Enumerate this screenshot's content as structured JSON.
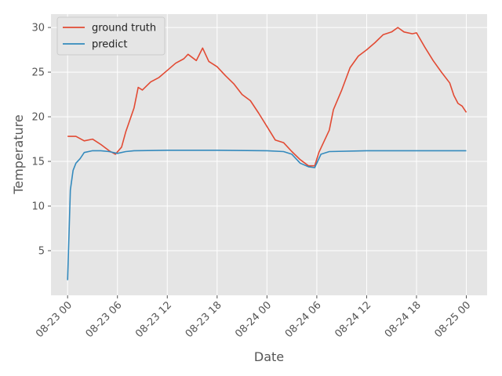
{
  "chart_data": {
    "type": "line",
    "title": "",
    "xlabel": "Date",
    "ylabel": "Temperature",
    "xlim": [
      "2023-08-22 22:00",
      "2023-08-25 02:30"
    ],
    "ylim": [
      0.0,
      31.5
    ],
    "x_ticks": [
      {
        "x": "2023-08-23 00:00",
        "label": "08-23 00"
      },
      {
        "x": "2023-08-23 06:00",
        "label": "08-23 06"
      },
      {
        "x": "2023-08-23 12:00",
        "label": "08-23 12"
      },
      {
        "x": "2023-08-23 18:00",
        "label": "08-23 18"
      },
      {
        "x": "2023-08-24 00:00",
        "label": "08-24 00"
      },
      {
        "x": "2023-08-24 06:00",
        "label": "08-24 06"
      },
      {
        "x": "2023-08-24 12:00",
        "label": "08-24 12"
      },
      {
        "x": "2023-08-24 18:00",
        "label": "08-24 18"
      },
      {
        "x": "2023-08-25 00:00",
        "label": "08-25 00"
      }
    ],
    "y_ticks": [
      5,
      10,
      15,
      20,
      25,
      30
    ],
    "grid": true,
    "legend_position": "top-left",
    "background": "#e5e5e5",
    "series": [
      {
        "name": "ground truth",
        "color": "#e24a33",
        "points": [
          [
            "2023-08-23 00:00",
            17.8
          ],
          [
            "2023-08-23 01:00",
            17.8
          ],
          [
            "2023-08-23 02:00",
            17.3
          ],
          [
            "2023-08-23 03:00",
            17.5
          ],
          [
            "2023-08-23 04:00",
            16.9
          ],
          [
            "2023-08-23 05:00",
            16.2
          ],
          [
            "2023-08-23 05:45",
            15.8
          ],
          [
            "2023-08-23 06:30",
            16.6
          ],
          [
            "2023-08-23 07:00",
            18.3
          ],
          [
            "2023-08-23 08:00",
            21.0
          ],
          [
            "2023-08-23 08:30",
            23.3
          ],
          [
            "2023-08-23 09:00",
            23.0
          ],
          [
            "2023-08-23 10:00",
            23.9
          ],
          [
            "2023-08-23 11:00",
            24.4
          ],
          [
            "2023-08-23 12:00",
            25.2
          ],
          [
            "2023-08-23 13:00",
            26.0
          ],
          [
            "2023-08-23 14:00",
            26.5
          ],
          [
            "2023-08-23 14:30",
            27.0
          ],
          [
            "2023-08-23 15:30",
            26.3
          ],
          [
            "2023-08-23 16:15",
            27.7
          ],
          [
            "2023-08-23 17:00",
            26.2
          ],
          [
            "2023-08-23 18:00",
            25.6
          ],
          [
            "2023-08-23 19:00",
            24.6
          ],
          [
            "2023-08-23 20:00",
            23.7
          ],
          [
            "2023-08-23 21:00",
            22.5
          ],
          [
            "2023-08-23 22:00",
            21.8
          ],
          [
            "2023-08-23 23:00",
            20.4
          ],
          [
            "2023-08-24 00:00",
            18.9
          ],
          [
            "2023-08-24 01:00",
            17.4
          ],
          [
            "2023-08-24 02:00",
            17.1
          ],
          [
            "2023-08-24 03:00",
            16.1
          ],
          [
            "2023-08-24 04:00",
            15.2
          ],
          [
            "2023-08-24 05:00",
            14.5
          ],
          [
            "2023-08-24 05:45",
            14.5
          ],
          [
            "2023-08-24 06:15",
            16.0
          ],
          [
            "2023-08-24 06:45",
            17.0
          ],
          [
            "2023-08-24 07:30",
            18.5
          ],
          [
            "2023-08-24 08:00",
            20.8
          ],
          [
            "2023-08-24 09:00",
            23.0
          ],
          [
            "2023-08-24 10:00",
            25.5
          ],
          [
            "2023-08-24 11:00",
            26.8
          ],
          [
            "2023-08-24 12:00",
            27.5
          ],
          [
            "2023-08-24 13:00",
            28.3
          ],
          [
            "2023-08-24 14:00",
            29.2
          ],
          [
            "2023-08-24 15:00",
            29.5
          ],
          [
            "2023-08-24 15:45",
            30.0
          ],
          [
            "2023-08-24 16:30",
            29.5
          ],
          [
            "2023-08-24 17:30",
            29.3
          ],
          [
            "2023-08-24 18:00",
            29.4
          ],
          [
            "2023-08-24 19:00",
            27.8
          ],
          [
            "2023-08-24 20:00",
            26.3
          ],
          [
            "2023-08-24 21:00",
            25.0
          ],
          [
            "2023-08-24 22:00",
            23.8
          ],
          [
            "2023-08-24 22:30",
            22.4
          ],
          [
            "2023-08-24 23:00",
            21.5
          ],
          [
            "2023-08-24 23:30",
            21.2
          ],
          [
            "2023-08-25 00:00",
            20.5
          ]
        ]
      },
      {
        "name": "predict",
        "color": "#348abd",
        "points": [
          [
            "2023-08-23 00:00",
            1.7
          ],
          [
            "2023-08-23 00:20",
            11.8
          ],
          [
            "2023-08-23 00:40",
            14.0
          ],
          [
            "2023-08-23 01:00",
            14.8
          ],
          [
            "2023-08-23 01:30",
            15.3
          ],
          [
            "2023-08-23 02:00",
            16.0
          ],
          [
            "2023-08-23 03:00",
            16.2
          ],
          [
            "2023-08-23 04:00",
            16.2
          ],
          [
            "2023-08-23 05:00",
            16.1
          ],
          [
            "2023-08-23 06:00",
            15.9
          ],
          [
            "2023-08-23 07:00",
            16.1
          ],
          [
            "2023-08-23 08:00",
            16.2
          ],
          [
            "2023-08-23 12:00",
            16.25
          ],
          [
            "2023-08-23 18:00",
            16.25
          ],
          [
            "2023-08-24 00:00",
            16.2
          ],
          [
            "2023-08-24 02:00",
            16.1
          ],
          [
            "2023-08-24 03:00",
            15.8
          ],
          [
            "2023-08-24 04:00",
            14.8
          ],
          [
            "2023-08-24 05:00",
            14.4
          ],
          [
            "2023-08-24 05:45",
            14.3
          ],
          [
            "2023-08-24 06:30",
            15.8
          ],
          [
            "2023-08-24 07:30",
            16.1
          ],
          [
            "2023-08-24 12:00",
            16.2
          ],
          [
            "2023-08-24 18:00",
            16.2
          ],
          [
            "2023-08-25 00:00",
            16.2
          ]
        ]
      }
    ]
  }
}
